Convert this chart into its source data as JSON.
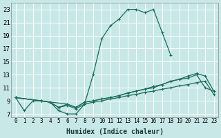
{
  "xlabel": "Humidex (Indice chaleur)",
  "xlim": [
    -0.5,
    23.5
  ],
  "ylim": [
    6.5,
    24
  ],
  "xticks": [
    0,
    1,
    2,
    3,
    4,
    5,
    6,
    7,
    8,
    9,
    10,
    11,
    12,
    13,
    14,
    15,
    16,
    17,
    18,
    19,
    20,
    21,
    22,
    23
  ],
  "yticks": [
    7,
    9,
    11,
    13,
    15,
    17,
    19,
    21,
    23
  ],
  "background_color": "#c8e8e8",
  "grid_color": "#ffffff",
  "line_color": "#1a6b5a",
  "line1_x": [
    0,
    1,
    2,
    3,
    4,
    5,
    6,
    7,
    8,
    9,
    10,
    11,
    12,
    13,
    14,
    15,
    16,
    17,
    18
  ],
  "line1_y": [
    9.5,
    7.5,
    9.0,
    9.0,
    8.8,
    7.5,
    7.0,
    7.0,
    8.5,
    13.0,
    18.5,
    20.5,
    21.5,
    23.0,
    23.0,
    22.5,
    23.0,
    19.5,
    16.0
  ],
  "line2_x": [
    0,
    6,
    7,
    8,
    9,
    10,
    11,
    12,
    13,
    14,
    15,
    16,
    17,
    18,
    19,
    20,
    21,
    22,
    23
  ],
  "line2_y": [
    9.5,
    8.5,
    8.0,
    8.8,
    9.0,
    9.3,
    9.5,
    9.8,
    10.2,
    10.5,
    10.8,
    11.2,
    11.5,
    12.0,
    12.3,
    12.8,
    13.2,
    12.8,
    10.5
  ],
  "line3_x": [
    0,
    3,
    4,
    5,
    6,
    7,
    8,
    9,
    10,
    11,
    12,
    13,
    14,
    15,
    16,
    17,
    18,
    19,
    20,
    21,
    22,
    23
  ],
  "line3_y": [
    9.5,
    9.0,
    8.8,
    8.0,
    8.5,
    8.0,
    8.8,
    9.0,
    9.3,
    9.5,
    9.8,
    10.2,
    10.5,
    10.8,
    11.0,
    11.5,
    12.0,
    12.3,
    12.5,
    13.0,
    11.0,
    10.5
  ],
  "line4_x": [
    0,
    3,
    4,
    5,
    6,
    7,
    8,
    9,
    10,
    11,
    12,
    13,
    14,
    15,
    16,
    17,
    18,
    19,
    20,
    21,
    22,
    23
  ],
  "line4_y": [
    9.5,
    9.0,
    8.8,
    8.0,
    8.3,
    7.8,
    8.5,
    8.8,
    9.0,
    9.3,
    9.5,
    9.8,
    10.0,
    10.3,
    10.5,
    10.8,
    11.0,
    11.3,
    11.5,
    11.8,
    12.0,
    10.0
  ]
}
